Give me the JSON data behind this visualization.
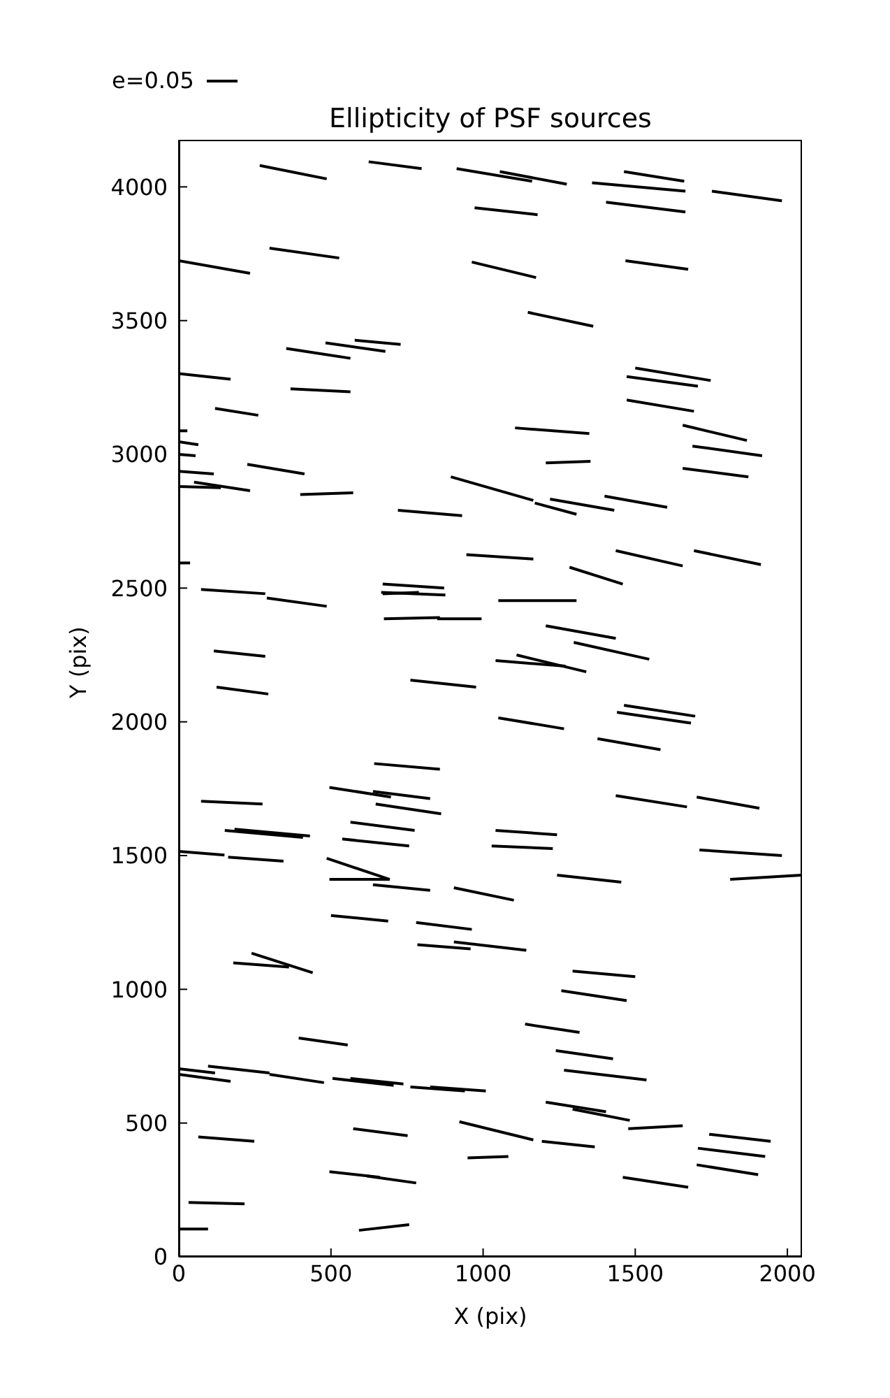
{
  "chart_data": {
    "type": "line",
    "title": "Ellipticity of PSF sources",
    "xlabel": "X (pix)",
    "ylabel": "Y (pix)",
    "annotations": [
      "e=0.05"
    ],
    "color": "#000000",
    "marker": "none",
    "line_style": "solid",
    "xlim": [
      0,
      2048
    ],
    "xticks": [
      0,
      500,
      1000,
      1500,
      2000
    ],
    "ylim": [
      0,
      4176
    ],
    "yticks": [
      0,
      500,
      1000,
      1500,
      2000,
      2500,
      3000,
      3500,
      4000
    ],
    "series": [
      {
        "x": [
          266,
          486
        ],
        "values": [
          4080,
          4030
        ]
      },
      {
        "x": [
          624,
          798
        ],
        "values": [
          4094,
          4068
        ]
      },
      {
        "x": [
          913,
          1161
        ],
        "values": [
          4068,
          4021
        ]
      },
      {
        "x": [
          1055,
          1275
        ],
        "values": [
          4057,
          4010
        ]
      },
      {
        "x": [
          1358,
          1665
        ],
        "values": [
          4015,
          3984
        ]
      },
      {
        "x": [
          1463,
          1661
        ],
        "values": [
          4057,
          4021
        ]
      },
      {
        "x": [
          1752,
          1982
        ],
        "values": [
          3984,
          3948
        ]
      },
      {
        "x": [
          972,
          1179
        ],
        "values": [
          3922,
          3896
        ]
      },
      {
        "x": [
          1404,
          1665
        ],
        "values": [
          3943,
          3906
        ]
      },
      {
        "x": [
          0,
          234
        ],
        "values": [
          3724,
          3677
        ]
      },
      {
        "x": [
          298,
          527
        ],
        "values": [
          3771,
          3734
        ]
      },
      {
        "x": [
          963,
          1174
        ],
        "values": [
          3719,
          3661
        ]
      },
      {
        "x": [
          1468,
          1674
        ],
        "values": [
          3724,
          3692
        ]
      },
      {
        "x": [
          1147,
          1362
        ],
        "values": [
          3531,
          3479
        ]
      },
      {
        "x": [
          353,
          564
        ],
        "values": [
          3396,
          3359
        ]
      },
      {
        "x": [
          482,
          679
        ],
        "values": [
          3417,
          3385
        ]
      },
      {
        "x": [
          578,
          729
        ],
        "values": [
          3427,
          3411
        ]
      },
      {
        "x": [
          0,
          170
        ],
        "values": [
          3302,
          3281
        ]
      },
      {
        "x": [
          119,
          261
        ],
        "values": [
          3172,
          3146
        ]
      },
      {
        "x": [
          367,
          564
        ],
        "values": [
          3245,
          3234
        ]
      },
      {
        "x": [
          1500,
          1748
        ],
        "values": [
          3323,
          3276
        ]
      },
      {
        "x": [
          1472,
          1706
        ],
        "values": [
          3291,
          3255
        ]
      },
      {
        "x": [
          1472,
          1693
        ],
        "values": [
          3203,
          3161
        ]
      },
      {
        "x": [
          0,
          28
        ],
        "values": [
          3088,
          3088
        ]
      },
      {
        "x": [
          0,
          64
        ],
        "values": [
          3047,
          3036
        ]
      },
      {
        "x": [
          0,
          55
        ],
        "values": [
          3000,
          2995
        ]
      },
      {
        "x": [
          0,
          115
        ],
        "values": [
          2937,
          2927
        ]
      },
      {
        "x": [
          0,
          138
        ],
        "values": [
          2880,
          2875
        ]
      },
      {
        "x": [
          50,
          234
        ],
        "values": [
          2896,
          2864
        ]
      },
      {
        "x": [
          225,
          413
        ],
        "values": [
          2963,
          2927
        ]
      },
      {
        "x": [
          399,
          573
        ],
        "values": [
          2850,
          2856
        ]
      },
      {
        "x": [
          1105,
          1349
        ],
        "values": [
          3099,
          3078
        ]
      },
      {
        "x": [
          1206,
          1353
        ],
        "values": [
          2968,
          2974
        ]
      },
      {
        "x": [
          1656,
          1867
        ],
        "values": [
          3109,
          3052
        ]
      },
      {
        "x": [
          1688,
          1917
        ],
        "values": [
          3031,
          2995
        ]
      },
      {
        "x": [
          1656,
          1872
        ],
        "values": [
          2948,
          2916
        ]
      },
      {
        "x": [
          894,
          1165
        ],
        "values": [
          2916,
          2828
        ]
      },
      {
        "x": [
          1170,
          1307
        ],
        "values": [
          2818,
          2776
        ]
      },
      {
        "x": [
          1220,
          1431
        ],
        "values": [
          2833,
          2791
        ]
      },
      {
        "x": [
          1399,
          1605
        ],
        "values": [
          2844,
          2802
        ]
      },
      {
        "x": [
          720,
          931
        ],
        "values": [
          2791,
          2771
        ]
      },
      {
        "x": [
          0,
          37
        ],
        "values": [
          2594,
          2594
        ]
      },
      {
        "x": [
          945,
          1165
        ],
        "values": [
          2625,
          2609
        ]
      },
      {
        "x": [
          1284,
          1459
        ],
        "values": [
          2578,
          2515
        ]
      },
      {
        "x": [
          1436,
          1656
        ],
        "values": [
          2640,
          2583
        ]
      },
      {
        "x": [
          1693,
          1913
        ],
        "values": [
          2640,
          2588
        ]
      },
      {
        "x": [
          73,
          284
        ],
        "values": [
          2495,
          2479
        ]
      },
      {
        "x": [
          289,
          486
        ],
        "values": [
          2463,
          2432
        ]
      },
      {
        "x": [
          670,
          872
        ],
        "values": [
          2515,
          2500
        ]
      },
      {
        "x": [
          665,
          876
        ],
        "values": [
          2484,
          2474
        ]
      },
      {
        "x": [
          670,
          789
        ],
        "values": [
          2479,
          2484
        ]
      },
      {
        "x": [
          1050,
          1307
        ],
        "values": [
          2453,
          2453
        ]
      },
      {
        "x": [
          674,
          858
        ],
        "values": [
          2385,
          2390
        ]
      },
      {
        "x": [
          849,
          995
        ],
        "values": [
          2385,
          2385
        ]
      },
      {
        "x": [
          1206,
          1436
        ],
        "values": [
          2359,
          2312
        ]
      },
      {
        "x": [
          1298,
          1546
        ],
        "values": [
          2297,
          2234
        ]
      },
      {
        "x": [
          115,
          284
        ],
        "values": [
          2265,
          2245
        ]
      },
      {
        "x": [
          1041,
          1271
        ],
        "values": [
          2229,
          2208
        ]
      },
      {
        "x": [
          1110,
          1339
        ],
        "values": [
          2250,
          2187
        ]
      },
      {
        "x": [
          124,
          294
        ],
        "values": [
          2130,
          2104
        ]
      },
      {
        "x": [
          761,
          977
        ],
        "values": [
          2156,
          2130
        ]
      },
      {
        "x": [
          1463,
          1697
        ],
        "values": [
          2062,
          2021
        ]
      },
      {
        "x": [
          1440,
          1683
        ],
        "values": [
          2036,
          1995
        ]
      },
      {
        "x": [
          1050,
          1266
        ],
        "values": [
          2015,
          1974
        ]
      },
      {
        "x": [
          1376,
          1583
        ],
        "values": [
          1937,
          1896
        ]
      },
      {
        "x": [
          642,
          858
        ],
        "values": [
          1844,
          1823
        ]
      },
      {
        "x": [
          73,
          275
        ],
        "values": [
          1703,
          1693
        ]
      },
      {
        "x": [
          495,
          697
        ],
        "values": [
          1755,
          1719
        ]
      },
      {
        "x": [
          638,
          826
        ],
        "values": [
          1740,
          1713
        ]
      },
      {
        "x": [
          647,
          862
        ],
        "values": [
          1693,
          1656
        ]
      },
      {
        "x": [
          1436,
          1670
        ],
        "values": [
          1724,
          1682
        ]
      },
      {
        "x": [
          1702,
          1908
        ],
        "values": [
          1719,
          1677
        ]
      },
      {
        "x": [
          564,
          775
        ],
        "values": [
          1625,
          1594
        ]
      },
      {
        "x": [
          151,
          408
        ],
        "values": [
          1594,
          1568
        ]
      },
      {
        "x": [
          183,
          431
        ],
        "values": [
          1599,
          1573
        ]
      },
      {
        "x": [
          537,
          757
        ],
        "values": [
          1562,
          1536
        ]
      },
      {
        "x": [
          1041,
          1243
        ],
        "values": [
          1594,
          1578
        ]
      },
      {
        "x": [
          1028,
          1229
        ],
        "values": [
          1536,
          1526
        ]
      },
      {
        "x": [
          0,
          150
        ],
        "values": [
          1516,
          1502
        ]
      },
      {
        "x": [
          162,
          344
        ],
        "values": [
          1494,
          1479
        ]
      },
      {
        "x": [
          1711,
          1982
        ],
        "values": [
          1521,
          1500
        ]
      },
      {
        "x": [
          486,
          693
        ],
        "values": [
          1490,
          1411
        ]
      },
      {
        "x": [
          495,
          693
        ],
        "values": [
          1411,
          1411
        ]
      },
      {
        "x": [
          638,
          826
        ],
        "values": [
          1391,
          1370
        ]
      },
      {
        "x": [
          904,
          1101
        ],
        "values": [
          1380,
          1333
        ]
      },
      {
        "x": [
          1243,
          1454
        ],
        "values": [
          1427,
          1401
        ]
      },
      {
        "x": [
          1812,
          2046
        ],
        "values": [
          1411,
          1427
        ]
      },
      {
        "x": [
          500,
          688
        ],
        "values": [
          1276,
          1255
        ]
      },
      {
        "x": [
          780,
          963
        ],
        "values": [
          1250,
          1224
        ]
      },
      {
        "x": [
          784,
          959
        ],
        "values": [
          1167,
          1151
        ]
      },
      {
        "x": [
          904,
          1142
        ],
        "values": [
          1177,
          1146
        ]
      },
      {
        "x": [
          179,
          362
        ],
        "values": [
          1099,
          1083
        ]
      },
      {
        "x": [
          239,
          440
        ],
        "values": [
          1135,
          1062
        ]
      },
      {
        "x": [
          1294,
          1500
        ],
        "values": [
          1068,
          1047
        ]
      },
      {
        "x": [
          1257,
          1472
        ],
        "values": [
          995,
          958
        ]
      },
      {
        "x": [
          1138,
          1317
        ],
        "values": [
          870,
          839
        ]
      },
      {
        "x": [
          394,
          555
        ],
        "values": [
          818,
          792
        ]
      },
      {
        "x": [
          0,
          119
        ],
        "values": [
          703,
          687
        ]
      },
      {
        "x": [
          0,
          170
        ],
        "values": [
          682,
          656
        ]
      },
      {
        "x": [
          96,
          298
        ],
        "values": [
          713,
          687
        ]
      },
      {
        "x": [
          298,
          477
        ],
        "values": [
          682,
          651
        ]
      },
      {
        "x": [
          505,
          706
        ],
        "values": [
          667,
          641
        ]
      },
      {
        "x": [
          564,
          738
        ],
        "values": [
          667,
          646
        ]
      },
      {
        "x": [
          761,
          940
        ],
        "values": [
          635,
          620
        ]
      },
      {
        "x": [
          826,
          1009
        ],
        "values": [
          635,
          620
        ]
      },
      {
        "x": [
          1239,
          1427
        ],
        "values": [
          771,
          740
        ]
      },
      {
        "x": [
          1266,
          1537
        ],
        "values": [
          698,
          661
        ]
      },
      {
        "x": [
          1206,
          1404
        ],
        "values": [
          578,
          542
        ]
      },
      {
        "x": [
          1294,
          1482
        ],
        "values": [
          552,
          510
        ]
      },
      {
        "x": [
          1477,
          1656
        ],
        "values": [
          479,
          490
        ]
      },
      {
        "x": [
          1743,
          1945
        ],
        "values": [
          458,
          432
        ]
      },
      {
        "x": [
          1706,
          1927
        ],
        "values": [
          406,
          375
        ]
      },
      {
        "x": [
          1702,
          1904
        ],
        "values": [
          344,
          307
        ]
      },
      {
        "x": [
          64,
          248
        ],
        "values": [
          448,
          432
        ]
      },
      {
        "x": [
          573,
          752
        ],
        "values": [
          479,
          453
        ]
      },
      {
        "x": [
          922,
          1165
        ],
        "values": [
          505,
          437
        ]
      },
      {
        "x": [
          1193,
          1367
        ],
        "values": [
          432,
          411
        ]
      },
      {
        "x": [
          949,
          1083
        ],
        "values": [
          370,
          375
        ]
      },
      {
        "x": [
          495,
          661
        ],
        "values": [
          318,
          297
        ]
      },
      {
        "x": [
          619,
          780
        ],
        "values": [
          302,
          276
        ]
      },
      {
        "x": [
          1459,
          1674
        ],
        "values": [
          297,
          260
        ]
      },
      {
        "x": [
          32,
          216
        ],
        "values": [
          203,
          198
        ]
      },
      {
        "x": [
          0,
          96
        ],
        "values": [
          104,
          104
        ]
      },
      {
        "x": [
          592,
          757
        ],
        "values": [
          99,
          120
        ]
      }
    ]
  }
}
